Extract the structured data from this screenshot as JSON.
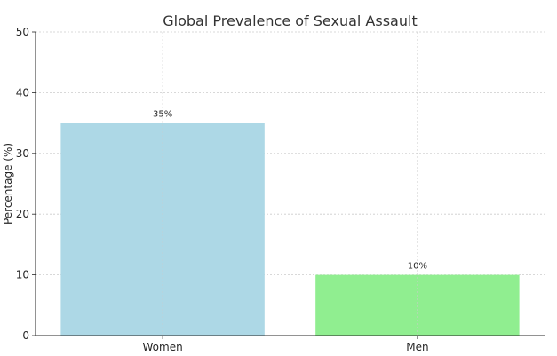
{
  "chart_data": {
    "type": "bar",
    "title": "Global Prevalence of Sexual Assault",
    "xlabel": "",
    "ylabel": "Percentage (%)",
    "categories": [
      "Women",
      "Men"
    ],
    "values": [
      35,
      10
    ],
    "data_labels": [
      "35%",
      "10%"
    ],
    "bar_colors": [
      "#add8e6",
      "#90ee90"
    ],
    "ylim": [
      0,
      50
    ],
    "yticks": [
      0,
      10,
      20,
      30,
      40,
      50
    ],
    "grid": true
  }
}
